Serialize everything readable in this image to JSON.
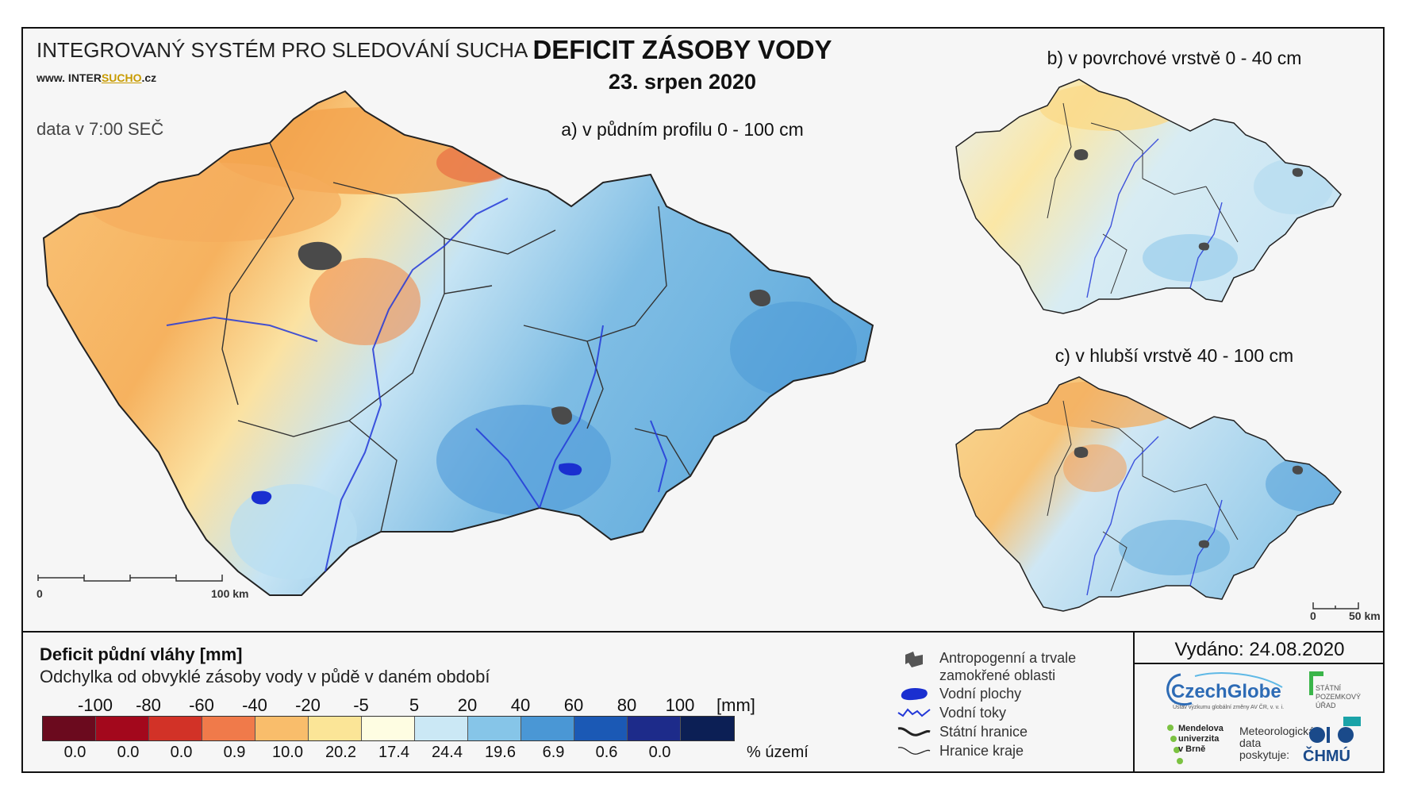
{
  "header": {
    "system_title": "INTEGROVANÝ SYSTÉM PRO SLEDOVÁNÍ SUCHA",
    "website_prefix": "www. INTER",
    "website_highlight": "SUCHO",
    "website_suffix": ".cz",
    "data_time": "data v 7:00 SEČ",
    "main_title": "DEFICIT ZÁSOBY VODY",
    "date": "23. srpen 2020"
  },
  "maps": {
    "a": {
      "label": "a) v půdním profilu 0 - 100 cm",
      "scale_start": "0",
      "scale_end": "100 km"
    },
    "b": {
      "label": "b) v povrchové vrstvě 0 - 40 cm"
    },
    "c": {
      "label": "c) v hlubší vrstvě 40 - 100 cm",
      "scale_start": "0",
      "scale_end": "50 km"
    }
  },
  "legend": {
    "title": "Deficit půdní vláhy  [mm]",
    "subtitle": "Odchylka od obvyklé zásoby vody v půdě v daném období",
    "unit": "[mm]",
    "percent_label": "% území",
    "ticks": [
      "-100",
      "-80",
      "-60",
      "-40",
      "-20",
      "-5",
      "5",
      "20",
      "40",
      "60",
      "80",
      "100"
    ],
    "colors": [
      "#6b0a1e",
      "#a3081c",
      "#d23227",
      "#f07a4a",
      "#f9bd6b",
      "#fbe597",
      "#fefde2",
      "#cbe8f5",
      "#86c5e8",
      "#4a97d5",
      "#1b59b5",
      "#1d2b8a",
      "#0c1f55"
    ],
    "percentages": [
      "0.0",
      "0.0",
      "0.0",
      "0.9",
      "10.0",
      "20.2",
      "17.4",
      "24.4",
      "19.6",
      "6.9",
      "0.6",
      "0.0"
    ]
  },
  "map_legend": {
    "anthropogenic": "Antropogenní a trvale zamokřené oblasti",
    "water_bodies": "Vodní plochy",
    "streams": "Vodní toky",
    "state_border": "Státní hranice",
    "region_border": "Hranice kraje"
  },
  "footer": {
    "issued": "Vydáno: 24.08.2020",
    "czechglobe": "CzechGlobe",
    "czechglobe_sub": "Ústav výzkumu globální změny AV ČR, v. v. i.",
    "spu_line1": "STÁTNÍ",
    "spu_line2": "POZEMKOVÝ",
    "spu_line3": "ÚŘAD",
    "mendel_line1": "Mendelova",
    "mendel_line2": "univerzita",
    "mendel_line3": "v Brně",
    "meteo_line1": "Meteorologická",
    "meteo_line2": "data",
    "meteo_line3": "poskytuje:",
    "chmu": "ČHMÚ"
  }
}
